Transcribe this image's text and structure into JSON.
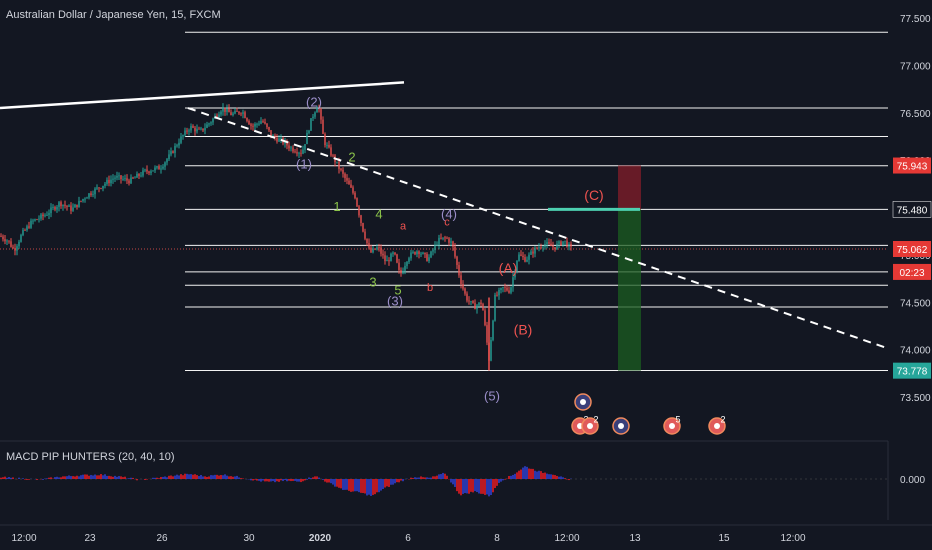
{
  "chart_title": "Australian Dollar / Japanese Yen, 15, FXCM",
  "macd_title": "MACD PIP HUNTERS (20, 40, 10)",
  "colors": {
    "background": "#131722",
    "candle_up": "#26a69a",
    "candle_down": "#ef5350",
    "level_line": "#ffffff",
    "trendline": "#ffffff",
    "wave_primary": "#9b8ec9",
    "wave_minor": "#8bc34a",
    "wave_abc": "#ef5350",
    "target_line": "#4dd0b1",
    "stop_zone": "#8b1e2a",
    "target_zone": "#1b5e20",
    "price_tag_red": "#e53935",
    "price_tag_green": "#26a69a"
  },
  "chart_data": {
    "type": "candlestick",
    "title": "Australian Dollar / Japanese Yen, 15, FXCM",
    "x_ticks": [
      "12:00",
      "23",
      "26",
      "30",
      "2020",
      "6",
      "8",
      "12:00",
      "13",
      "15",
      "12:00"
    ],
    "y_ticks": [
      77.5,
      77.0,
      76.5,
      76.0,
      75.5,
      75.0,
      74.5,
      74.0,
      73.5
    ],
    "ylim": [
      73.3,
      77.6
    ],
    "price_path": [
      [
        0,
        75.2
      ],
      [
        8,
        75.15
      ],
      [
        14,
        75.05
      ],
      [
        22,
        75.22
      ],
      [
        32,
        75.35
      ],
      [
        45,
        75.42
      ],
      [
        60,
        75.55
      ],
      [
        72,
        75.48
      ],
      [
        86,
        75.62
      ],
      [
        100,
        75.72
      ],
      [
        115,
        75.82
      ],
      [
        130,
        75.78
      ],
      [
        145,
        75.88
      ],
      [
        160,
        75.92
      ],
      [
        170,
        76.05
      ],
      [
        180,
        76.22
      ],
      [
        190,
        76.35
      ],
      [
        200,
        76.3
      ],
      [
        212,
        76.42
      ],
      [
        222,
        76.55
      ],
      [
        232,
        76.48
      ],
      [
        242,
        76.52
      ],
      [
        252,
        76.35
      ],
      [
        262,
        76.42
      ],
      [
        272,
        76.25
      ],
      [
        282,
        76.2
      ],
      [
        292,
        76.12
      ],
      [
        302,
        76.08
      ],
      [
        312,
        76.45
      ],
      [
        318,
        76.6
      ],
      [
        324,
        76.2
      ],
      [
        332,
        76.05
      ],
      [
        340,
        75.9
      ],
      [
        348,
        75.75
      ],
      [
        355,
        75.62
      ],
      [
        362,
        75.3
      ],
      [
        370,
        75.02
      ],
      [
        378,
        75.08
      ],
      [
        386,
        74.92
      ],
      [
        394,
        75.02
      ],
      [
        400,
        74.78
      ],
      [
        408,
        74.98
      ],
      [
        418,
        75.05
      ],
      [
        428,
        74.95
      ],
      [
        438,
        75.15
      ],
      [
        446,
        75.18
      ],
      [
        452,
        75.12
      ],
      [
        460,
        74.75
      ],
      [
        466,
        74.55
      ],
      [
        474,
        74.45
      ],
      [
        482,
        74.5
      ],
      [
        489,
        73.9
      ],
      [
        495,
        74.55
      ],
      [
        503,
        74.65
      ],
      [
        510,
        74.62
      ],
      [
        518,
        75.0
      ],
      [
        526,
        74.95
      ],
      [
        534,
        75.05
      ],
      [
        544,
        75.12
      ],
      [
        554,
        75.08
      ],
      [
        564,
        75.15
      ],
      [
        572,
        75.05
      ]
    ],
    "horizontal_levels": [
      77.35,
      76.55,
      76.25,
      75.94,
      75.48,
      75.1,
      74.82,
      74.68,
      74.45,
      73.78
    ],
    "trendlines": [
      {
        "from": [
          0,
          76.55
        ],
        "to": [
          404,
          76.82
        ],
        "style": "solid"
      },
      {
        "from": [
          188,
          76.55
        ],
        "to": [
          886,
          74.02
        ],
        "style": "dashed"
      }
    ],
    "wave_labels": [
      {
        "text": "(2)",
        "x": 314,
        "y": 76.6,
        "group": "primary"
      },
      {
        "text": "(1)",
        "x": 304,
        "y": 75.95,
        "group": "primary"
      },
      {
        "text": "(4)",
        "x": 449,
        "y": 75.42,
        "group": "primary"
      },
      {
        "text": "(3)",
        "x": 395,
        "y": 74.5,
        "group": "primary"
      },
      {
        "text": "(5)",
        "x": 492,
        "y": 73.5,
        "group": "primary"
      },
      {
        "text": "2",
        "x": 352,
        "y": 76.02,
        "group": "minor"
      },
      {
        "text": "1",
        "x": 337,
        "y": 75.5,
        "group": "minor"
      },
      {
        "text": "4",
        "x": 379,
        "y": 75.42,
        "group": "minor"
      },
      {
        "text": "3",
        "x": 373,
        "y": 74.7,
        "group": "minor"
      },
      {
        "text": "5",
        "x": 398,
        "y": 74.62,
        "group": "minor"
      },
      {
        "text": "a",
        "x": 403,
        "y": 75.3,
        "group": "abc-small"
      },
      {
        "text": "b",
        "x": 430,
        "y": 74.65,
        "group": "abc-small"
      },
      {
        "text": "c",
        "x": 447,
        "y": 75.34,
        "group": "abc-small"
      },
      {
        "text": "(A)",
        "x": 508,
        "y": 74.85,
        "group": "abc"
      },
      {
        "text": "(B)",
        "x": 523,
        "y": 74.2,
        "group": "abc"
      },
      {
        "text": "(C)",
        "x": 594,
        "y": 75.62,
        "group": "abc"
      }
    ],
    "target_line": {
      "x_start": 548,
      "x_end": 640,
      "y": 75.48
    },
    "position": {
      "x_start": 618,
      "x_end": 641,
      "entry": 75.48,
      "stop": 75.943,
      "target": 73.778
    },
    "price_tags": [
      {
        "label": "75.943",
        "value": 75.943,
        "color": "red"
      },
      {
        "label": "75.480",
        "value": 75.48,
        "color": "dark"
      },
      {
        "label": "75.062",
        "value": 75.062,
        "color": "red"
      },
      {
        "label": "02:23",
        "value": 74.82,
        "color": "red"
      },
      {
        "label": "73.778",
        "value": 73.778,
        "color": "green"
      }
    ],
    "event_icons": [
      {
        "x": 583,
        "label": ""
      },
      {
        "x": 580,
        "label": "2"
      },
      {
        "x": 590,
        "label": "2"
      },
      {
        "x": 621,
        "label": ""
      },
      {
        "x": 672,
        "label": "5"
      },
      {
        "x": 717,
        "label": "2"
      }
    ],
    "macd": {
      "title": "MACD PIP HUNTERS (20, 40, 10)",
      "y_tick": "0.000",
      "histogram_envelope": [
        [
          0,
          0.04
        ],
        [
          20,
          0.01
        ],
        [
          40,
          -0.02
        ],
        [
          60,
          0.05
        ],
        [
          80,
          0.08
        ],
        [
          100,
          0.1
        ],
        [
          120,
          0.05
        ],
        [
          140,
          -0.02
        ],
        [
          160,
          0.03
        ],
        [
          175,
          0.08
        ],
        [
          190,
          0.11
        ],
        [
          205,
          0.06
        ],
        [
          222,
          0.1
        ],
        [
          240,
          0.04
        ],
        [
          255,
          -0.03
        ],
        [
          270,
          -0.07
        ],
        [
          285,
          -0.04
        ],
        [
          300,
          -0.06
        ],
        [
          315,
          0.07
        ],
        [
          330,
          -0.1
        ],
        [
          345,
          -0.25
        ],
        [
          360,
          -0.3
        ],
        [
          372,
          -0.38
        ],
        [
          385,
          -0.2
        ],
        [
          400,
          -0.05
        ],
        [
          415,
          0.05
        ],
        [
          430,
          0.02
        ],
        [
          445,
          0.13
        ],
        [
          460,
          -0.35
        ],
        [
          475,
          -0.28
        ],
        [
          490,
          -0.38
        ],
        [
          500,
          -0.05
        ],
        [
          512,
          0.08
        ],
        [
          525,
          0.28
        ],
        [
          540,
          0.16
        ],
        [
          555,
          0.1
        ],
        [
          570,
          -0.05
        ]
      ]
    }
  }
}
